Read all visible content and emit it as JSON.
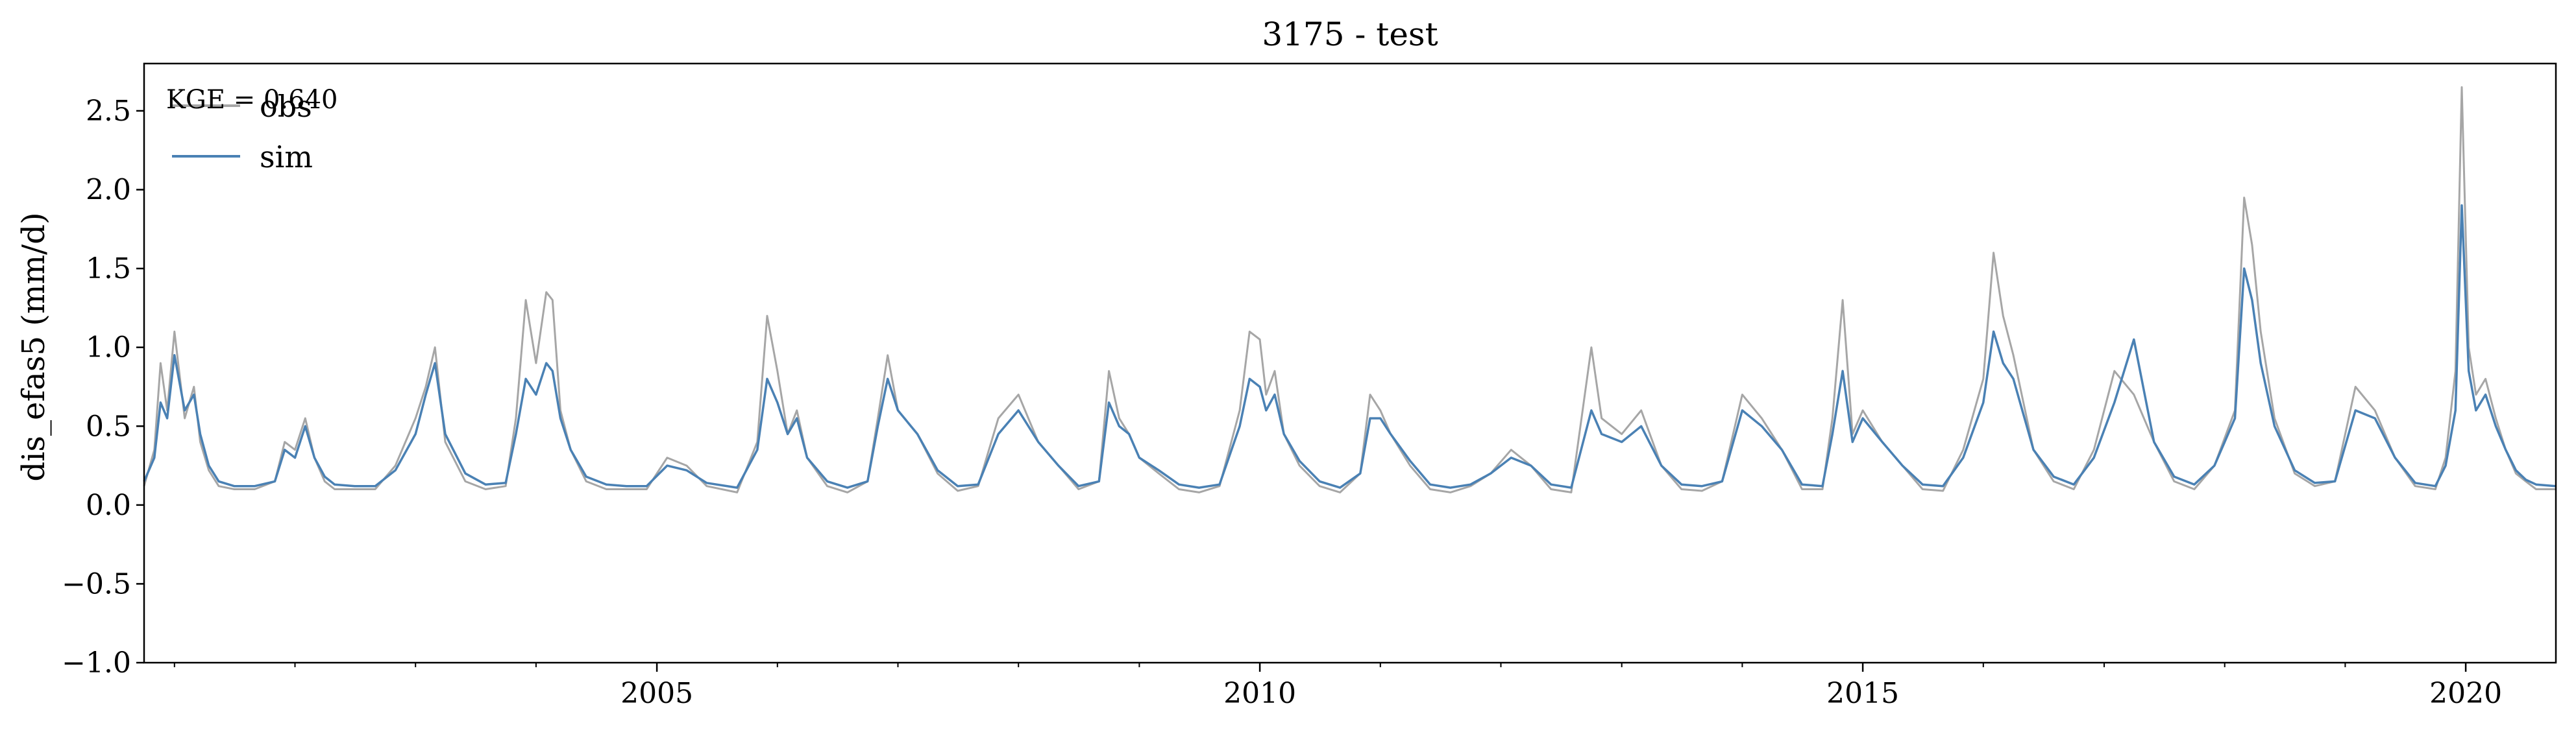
{
  "chart_data": {
    "type": "line",
    "title": "3175 - test",
    "xlabel": "",
    "ylabel": "dis_efas5 (mm/d)",
    "xlim": [
      "2000-10-01",
      "2020-09-30"
    ],
    "ylim": [
      -1.0,
      2.8
    ],
    "yticks": [
      -1.0,
      -0.5,
      0.0,
      0.5,
      1.0,
      1.5,
      2.0,
      2.5
    ],
    "ytick_labels": [
      "−1.0",
      "−0.5",
      "0.0",
      "0.5",
      "1.0",
      "1.5",
      "2.0",
      "2.5"
    ],
    "xticks": [
      "2005-01-01",
      "2010-01-01",
      "2015-01-01",
      "2020-01-01"
    ],
    "xtick_labels": [
      "2005",
      "2010",
      "2015",
      "2020"
    ],
    "grid": false,
    "legend_position": "top-left",
    "annotation": "KGE = 0.640",
    "series": [
      {
        "name": "obs",
        "color": "#a6a6a6",
        "x": [
          "2000-10-01",
          "2000-11-01",
          "2000-11-20",
          "2000-12-10",
          "2001-01-01",
          "2001-02-01",
          "2001-03-01",
          "2001-03-20",
          "2001-04-15",
          "2001-05-15",
          "2001-07-01",
          "2001-09-01",
          "2001-11-01",
          "2001-12-01",
          "2002-01-01",
          "2002-02-01",
          "2002-03-01",
          "2002-04-01",
          "2002-05-01",
          "2002-07-01",
          "2002-09-01",
          "2002-11-01",
          "2003-01-01",
          "2003-02-01",
          "2003-03-01",
          "2003-04-01",
          "2003-06-01",
          "2003-08-01",
          "2003-10-01",
          "2003-11-01",
          "2003-12-01",
          "2004-01-01",
          "2004-02-01",
          "2004-02-20",
          "2004-03-15",
          "2004-04-15",
          "2004-06-01",
          "2004-08-01",
          "2004-10-01",
          "2004-12-01",
          "2005-02-01",
          "2005-04-01",
          "2005-06-01",
          "2005-09-01",
          "2005-11-01",
          "2005-12-01",
          "2006-01-01",
          "2006-02-01",
          "2006-03-01",
          "2006-04-01",
          "2006-06-01",
          "2006-08-01",
          "2006-10-01",
          "2006-11-01",
          "2006-12-01",
          "2007-01-01",
          "2007-03-01",
          "2007-05-01",
          "2007-07-01",
          "2007-09-01",
          "2007-11-01",
          "2008-01-01",
          "2008-03-01",
          "2008-05-01",
          "2008-07-01",
          "2008-09-01",
          "2008-10-01",
          "2008-11-01",
          "2008-12-01",
          "2009-01-01",
          "2009-03-01",
          "2009-05-01",
          "2009-07-01",
          "2009-09-01",
          "2009-11-01",
          "2009-12-01",
          "2010-01-01",
          "2010-01-20",
          "2010-02-15",
          "2010-03-15",
          "2010-05-01",
          "2010-07-01",
          "2010-09-01",
          "2010-11-01",
          "2010-12-01",
          "2011-01-01",
          "2011-02-01",
          "2011-04-01",
          "2011-06-01",
          "2011-08-01",
          "2011-10-01",
          "2011-12-01",
          "2012-02-01",
          "2012-04-01",
          "2012-06-01",
          "2012-08-01",
          "2012-10-01",
          "2012-11-01",
          "2013-01-01",
          "2013-03-01",
          "2013-05-01",
          "2013-07-01",
          "2013-09-01",
          "2013-11-01",
          "2014-01-01",
          "2014-03-01",
          "2014-05-01",
          "2014-07-01",
          "2014-09-01",
          "2014-10-01",
          "2014-11-01",
          "2014-12-01",
          "2015-01-01",
          "2015-03-01",
          "2015-05-01",
          "2015-07-01",
          "2015-09-01",
          "2015-11-01",
          "2016-01-01",
          "2016-02-01",
          "2016-03-01",
          "2016-04-01",
          "2016-06-01",
          "2016-08-01",
          "2016-10-01",
          "2016-12-01",
          "2017-02-01",
          "2017-04-01",
          "2017-06-01",
          "2017-08-01",
          "2017-10-01",
          "2017-12-01",
          "2018-02-01",
          "2018-03-01",
          "2018-03-25",
          "2018-04-20",
          "2018-06-01",
          "2018-08-01",
          "2018-10-01",
          "2018-12-01",
          "2019-02-01",
          "2019-04-01",
          "2019-06-01",
          "2019-08-01",
          "2019-10-01",
          "2019-11-01",
          "2019-12-01",
          "2019-12-20",
          "2020-01-10",
          "2020-02-01",
          "2020-03-01",
          "2020-04-01",
          "2020-05-01",
          "2020-06-01",
          "2020-07-01",
          "2020-08-01",
          "2020-09-30"
        ],
        "y": [
          0.12,
          0.35,
          0.9,
          0.6,
          1.1,
          0.55,
          0.75,
          0.4,
          0.22,
          0.12,
          0.1,
          0.1,
          0.15,
          0.4,
          0.35,
          0.55,
          0.3,
          0.15,
          0.1,
          0.1,
          0.1,
          0.25,
          0.55,
          0.75,
          1.0,
          0.4,
          0.15,
          0.1,
          0.12,
          0.55,
          1.3,
          0.9,
          1.35,
          1.3,
          0.6,
          0.35,
          0.15,
          0.1,
          0.1,
          0.1,
          0.3,
          0.25,
          0.12,
          0.08,
          0.4,
          1.2,
          0.85,
          0.45,
          0.6,
          0.3,
          0.12,
          0.08,
          0.15,
          0.55,
          0.95,
          0.6,
          0.45,
          0.2,
          0.09,
          0.12,
          0.55,
          0.7,
          0.4,
          0.25,
          0.1,
          0.15,
          0.85,
          0.55,
          0.45,
          0.3,
          0.2,
          0.1,
          0.08,
          0.12,
          0.6,
          1.1,
          1.05,
          0.7,
          0.85,
          0.45,
          0.25,
          0.12,
          0.08,
          0.2,
          0.7,
          0.6,
          0.45,
          0.25,
          0.1,
          0.08,
          0.12,
          0.2,
          0.35,
          0.25,
          0.1,
          0.08,
          1.0,
          0.55,
          0.45,
          0.6,
          0.25,
          0.1,
          0.09,
          0.15,
          0.7,
          0.55,
          0.35,
          0.1,
          0.1,
          0.55,
          1.3,
          0.45,
          0.6,
          0.4,
          0.25,
          0.1,
          0.09,
          0.35,
          0.8,
          1.6,
          1.2,
          0.95,
          0.35,
          0.15,
          0.1,
          0.35,
          0.85,
          0.7,
          0.4,
          0.15,
          0.1,
          0.25,
          0.6,
          1.95,
          1.65,
          1.1,
          0.55,
          0.2,
          0.12,
          0.15,
          0.75,
          0.6,
          0.3,
          0.12,
          0.1,
          0.3,
          0.85,
          2.65,
          1.0,
          0.7,
          0.8,
          0.55,
          0.35,
          0.2,
          0.15,
          0.1,
          0.1
        ]
      },
      {
        "name": "sim",
        "color": "#4a81b4",
        "x": [
          "2000-10-01",
          "2000-11-01",
          "2000-11-20",
          "2000-12-10",
          "2001-01-01",
          "2001-02-01",
          "2001-03-01",
          "2001-03-20",
          "2001-04-15",
          "2001-05-15",
          "2001-07-01",
          "2001-09-01",
          "2001-11-01",
          "2001-12-01",
          "2002-01-01",
          "2002-02-01",
          "2002-03-01",
          "2002-04-01",
          "2002-05-01",
          "2002-07-01",
          "2002-09-01",
          "2002-11-01",
          "2003-01-01",
          "2003-02-01",
          "2003-03-01",
          "2003-04-01",
          "2003-06-01",
          "2003-08-01",
          "2003-10-01",
          "2003-11-01",
          "2003-12-01",
          "2004-01-01",
          "2004-02-01",
          "2004-02-20",
          "2004-03-15",
          "2004-04-15",
          "2004-06-01",
          "2004-08-01",
          "2004-10-01",
          "2004-12-01",
          "2005-02-01",
          "2005-04-01",
          "2005-06-01",
          "2005-09-01",
          "2005-11-01",
          "2005-12-01",
          "2006-01-01",
          "2006-02-01",
          "2006-03-01",
          "2006-04-01",
          "2006-06-01",
          "2006-08-01",
          "2006-10-01",
          "2006-11-01",
          "2006-12-01",
          "2007-01-01",
          "2007-03-01",
          "2007-05-01",
          "2007-07-01",
          "2007-09-01",
          "2007-11-01",
          "2008-01-01",
          "2008-03-01",
          "2008-05-01",
          "2008-07-01",
          "2008-09-01",
          "2008-10-01",
          "2008-11-01",
          "2008-12-01",
          "2009-01-01",
          "2009-03-01",
          "2009-05-01",
          "2009-07-01",
          "2009-09-01",
          "2009-11-01",
          "2009-12-01",
          "2010-01-01",
          "2010-01-20",
          "2010-02-15",
          "2010-03-15",
          "2010-05-01",
          "2010-07-01",
          "2010-09-01",
          "2010-11-01",
          "2010-12-01",
          "2011-01-01",
          "2011-02-01",
          "2011-04-01",
          "2011-06-01",
          "2011-08-01",
          "2011-10-01",
          "2011-12-01",
          "2012-02-01",
          "2012-04-01",
          "2012-06-01",
          "2012-08-01",
          "2012-10-01",
          "2012-11-01",
          "2013-01-01",
          "2013-03-01",
          "2013-05-01",
          "2013-07-01",
          "2013-09-01",
          "2013-11-01",
          "2014-01-01",
          "2014-03-01",
          "2014-05-01",
          "2014-07-01",
          "2014-09-01",
          "2014-10-01",
          "2014-11-01",
          "2014-12-01",
          "2015-01-01",
          "2015-03-01",
          "2015-05-01",
          "2015-07-01",
          "2015-09-01",
          "2015-11-01",
          "2016-01-01",
          "2016-02-01",
          "2016-03-01",
          "2016-04-01",
          "2016-06-01",
          "2016-08-01",
          "2016-10-01",
          "2016-12-01",
          "2017-02-01",
          "2017-04-01",
          "2017-06-01",
          "2017-08-01",
          "2017-10-01",
          "2017-12-01",
          "2018-02-01",
          "2018-03-01",
          "2018-03-25",
          "2018-04-20",
          "2018-06-01",
          "2018-08-01",
          "2018-10-01",
          "2018-12-01",
          "2019-02-01",
          "2019-04-01",
          "2019-06-01",
          "2019-08-01",
          "2019-10-01",
          "2019-11-01",
          "2019-12-01",
          "2019-12-20",
          "2020-01-10",
          "2020-02-01",
          "2020-03-01",
          "2020-04-01",
          "2020-05-01",
          "2020-06-01",
          "2020-07-01",
          "2020-08-01",
          "2020-09-30"
        ],
        "y": [
          0.15,
          0.3,
          0.65,
          0.55,
          0.95,
          0.6,
          0.7,
          0.45,
          0.25,
          0.15,
          0.12,
          0.12,
          0.15,
          0.35,
          0.3,
          0.5,
          0.3,
          0.18,
          0.13,
          0.12,
          0.12,
          0.22,
          0.45,
          0.7,
          0.9,
          0.45,
          0.2,
          0.13,
          0.14,
          0.45,
          0.8,
          0.7,
          0.9,
          0.85,
          0.55,
          0.35,
          0.18,
          0.13,
          0.12,
          0.12,
          0.25,
          0.22,
          0.14,
          0.11,
          0.35,
          0.8,
          0.65,
          0.45,
          0.55,
          0.3,
          0.15,
          0.11,
          0.15,
          0.5,
          0.8,
          0.6,
          0.45,
          0.22,
          0.12,
          0.13,
          0.45,
          0.6,
          0.4,
          0.25,
          0.12,
          0.15,
          0.65,
          0.5,
          0.45,
          0.3,
          0.22,
          0.13,
          0.11,
          0.13,
          0.5,
          0.8,
          0.75,
          0.6,
          0.7,
          0.45,
          0.28,
          0.15,
          0.11,
          0.2,
          0.55,
          0.55,
          0.45,
          0.28,
          0.13,
          0.11,
          0.13,
          0.2,
          0.3,
          0.25,
          0.13,
          0.11,
          0.6,
          0.45,
          0.4,
          0.5,
          0.25,
          0.13,
          0.12,
          0.15,
          0.6,
          0.5,
          0.35,
          0.13,
          0.12,
          0.45,
          0.85,
          0.4,
          0.55,
          0.4,
          0.25,
          0.13,
          0.12,
          0.3,
          0.65,
          1.1,
          0.9,
          0.8,
          0.35,
          0.18,
          0.13,
          0.3,
          0.65,
          1.05,
          0.4,
          0.18,
          0.13,
          0.25,
          0.55,
          1.5,
          1.3,
          0.9,
          0.5,
          0.22,
          0.14,
          0.15,
          0.6,
          0.55,
          0.3,
          0.14,
          0.12,
          0.25,
          0.6,
          1.9,
          0.85,
          0.6,
          0.7,
          0.5,
          0.35,
          0.22,
          0.16,
          0.13,
          0.12
        ]
      }
    ]
  }
}
